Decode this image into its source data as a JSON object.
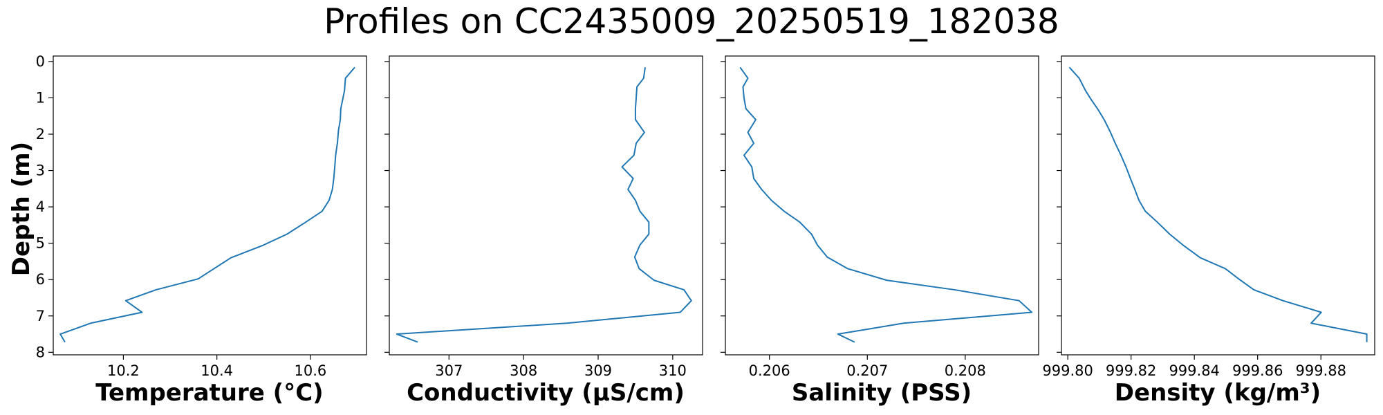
{
  "figure": {
    "title": "Profiles on CC2435009_20250519_182038",
    "line_color": "#1f77b4"
  },
  "chart_data": [
    {
      "type": "line",
      "xlabel": "Temperature (°C)",
      "ylabel": "Depth (m)",
      "xlim": [
        10.05,
        10.72
      ],
      "ylim": [
        8.07,
        -0.15
      ],
      "y_inverted": true,
      "xticks": [
        10.2,
        10.4,
        10.6
      ],
      "xtick_labels": [
        "10.2",
        "10.4",
        "10.6"
      ],
      "yticks": [
        0,
        1,
        2,
        3,
        4,
        5,
        6,
        7,
        8
      ],
      "ytick_labels": [
        "0",
        "1",
        "2",
        "3",
        "4",
        "5",
        "6",
        "7",
        "8"
      ],
      "series": [
        {
          "x": [
            10.695,
            10.675,
            10.673,
            10.669,
            10.665,
            10.664,
            10.66,
            10.658,
            10.654,
            10.652,
            10.65,
            10.647,
            10.64,
            10.625,
            10.59,
            10.55,
            10.5,
            10.43,
            10.36,
            10.27,
            10.205,
            10.24,
            10.13,
            10.065,
            10.075
          ],
          "y": [
            0.16,
            0.46,
            0.8,
            1.05,
            1.3,
            1.6,
            1.9,
            2.22,
            2.58,
            2.92,
            3.22,
            3.52,
            3.82,
            4.12,
            4.42,
            4.75,
            5.05,
            5.4,
            5.98,
            6.28,
            6.58,
            6.9,
            7.2,
            7.5,
            7.72
          ]
        }
      ]
    },
    {
      "type": "line",
      "xlabel": "Conductivity (µS/cm)",
      "xlim": [
        306.2,
        310.4
      ],
      "ylim": [
        8.07,
        -0.15
      ],
      "y_inverted": true,
      "xticks": [
        307,
        308,
        309,
        310
      ],
      "xtick_labels": [
        "307",
        "308",
        "309",
        "310"
      ],
      "yticks": [
        0,
        1,
        2,
        3,
        4,
        5,
        6,
        7,
        8
      ],
      "series": [
        {
          "x": [
            309.63,
            309.61,
            309.52,
            309.51,
            309.5,
            309.5,
            309.62,
            309.51,
            309.48,
            309.32,
            309.47,
            309.4,
            309.5,
            309.56,
            309.68,
            309.68,
            309.56,
            309.49,
            309.55,
            309.75,
            310.15,
            310.25,
            310.1,
            308.58,
            306.3,
            306.58
          ],
          "y": [
            0.16,
            0.46,
            0.7,
            1.0,
            1.3,
            1.6,
            1.95,
            2.25,
            2.58,
            2.9,
            3.22,
            3.52,
            3.82,
            4.12,
            4.42,
            4.75,
            5.05,
            5.38,
            5.7,
            6.02,
            6.28,
            6.58,
            6.9,
            7.2,
            7.5,
            7.72
          ]
        }
      ]
    },
    {
      "type": "line",
      "xlabel": "Salinity (PSS)",
      "xlim": [
        0.20555,
        0.20875
      ],
      "ylim": [
        8.07,
        -0.15
      ],
      "y_inverted": true,
      "xticks": [
        0.206,
        0.207,
        0.208
      ],
      "xtick_labels": [
        "0.206",
        "0.207",
        "0.208"
      ],
      "yticks": [
        0,
        1,
        2,
        3,
        4,
        5,
        6,
        7,
        8
      ],
      "series": [
        {
          "x": [
            0.2057,
            0.20578,
            0.20573,
            0.20574,
            0.20576,
            0.20586,
            0.20578,
            0.20584,
            0.20574,
            0.20582,
            0.20584,
            0.20592,
            0.20602,
            0.20615,
            0.20631,
            0.20643,
            0.20649,
            0.20659,
            0.2068,
            0.2072,
            0.20789,
            0.20855,
            0.20868,
            0.20737,
            0.2067,
            0.20687
          ],
          "y": [
            0.16,
            0.46,
            0.7,
            1.0,
            1.3,
            1.6,
            1.95,
            2.25,
            2.58,
            2.9,
            3.22,
            3.52,
            3.82,
            4.12,
            4.42,
            4.75,
            5.05,
            5.38,
            5.7,
            6.02,
            6.28,
            6.58,
            6.9,
            7.2,
            7.5,
            7.72
          ]
        }
      ]
    },
    {
      "type": "line",
      "xlabel": "Density (kg/m³)",
      "xlim": [
        999.798,
        999.897
      ],
      "ylim": [
        8.07,
        -0.15
      ],
      "y_inverted": true,
      "xticks": [
        999.8,
        999.82,
        999.84,
        999.86,
        999.88
      ],
      "xtick_labels": [
        "999.80",
        "999.82",
        "999.84",
        "999.86",
        "999.88"
      ],
      "yticks": [
        0,
        1,
        2,
        3,
        4,
        5,
        6,
        7,
        8
      ],
      "series": [
        {
          "x": [
            999.8005,
            999.8036,
            999.8056,
            999.8074,
            999.8094,
            999.8115,
            999.8135,
            999.815,
            999.8168,
            999.8184,
            999.8198,
            999.8212,
            999.8225,
            999.8245,
            999.8283,
            999.8322,
            999.8364,
            999.8419,
            999.8498,
            999.854,
            999.8588,
            999.868,
            999.8801,
            999.8769,
            999.8945,
            999.8945
          ],
          "y": [
            0.16,
            0.46,
            0.8,
            1.05,
            1.3,
            1.6,
            1.95,
            2.25,
            2.58,
            2.9,
            3.22,
            3.52,
            3.82,
            4.12,
            4.42,
            4.75,
            5.05,
            5.4,
            5.7,
            5.98,
            6.28,
            6.58,
            6.9,
            7.2,
            7.5,
            7.72
          ]
        }
      ]
    }
  ]
}
